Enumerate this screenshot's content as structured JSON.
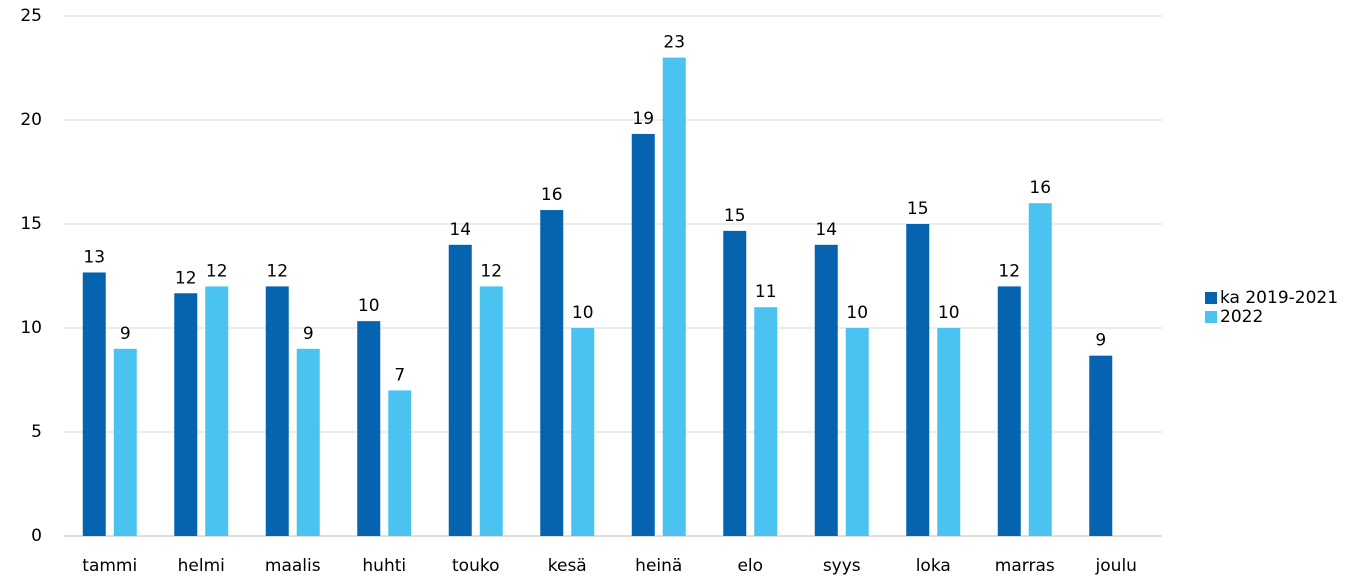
{
  "chart_data": {
    "type": "bar",
    "categories": [
      "tammi",
      "helmi",
      "maalis",
      "huhti",
      "touko",
      "kesä",
      "heinä",
      "elo",
      "syys",
      "loka",
      "marras",
      "joulu"
    ],
    "series": [
      {
        "name": "ka 2019-2021",
        "color": "#0563b0",
        "values": [
          12.67,
          11.67,
          12,
          10.33,
          14,
          15.67,
          19.33,
          14.67,
          14,
          15,
          12,
          8.67
        ],
        "value_labels": [
          "13",
          "12",
          "12",
          "10",
          "14",
          "16",
          "19",
          "15",
          "14",
          "15",
          "12",
          "9"
        ]
      },
      {
        "name": "2022",
        "color": "#4bc3f0",
        "values": [
          9,
          12,
          9,
          7,
          12,
          10,
          23,
          11,
          10,
          10,
          16,
          null
        ],
        "value_labels": [
          "9",
          "12",
          "9",
          "7",
          "12",
          "10",
          "23",
          "11",
          "10",
          "10",
          "16",
          null
        ]
      }
    ],
    "ylim": [
      0,
      25
    ],
    "yticks": [
      0,
      5,
      10,
      15,
      20,
      25
    ],
    "grid": true,
    "legend": "right"
  }
}
